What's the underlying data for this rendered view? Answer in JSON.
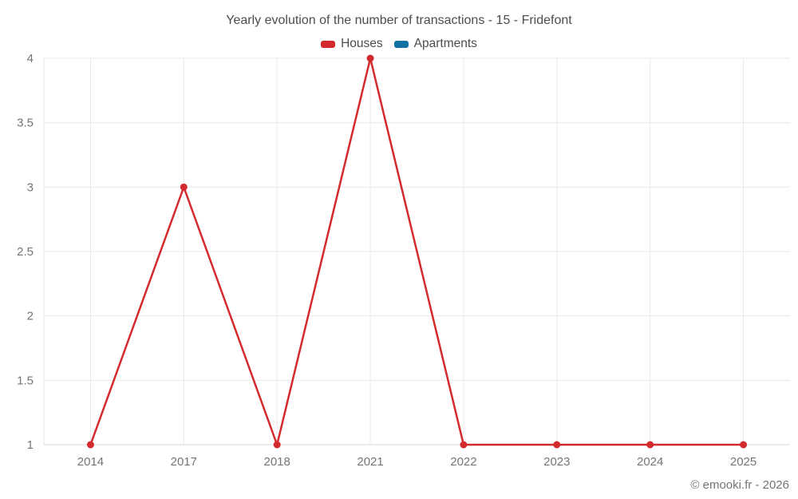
{
  "chart": {
    "title": "Yearly evolution of the number of transactions - 15 - Fridefont",
    "legend": [
      {
        "label": "Houses",
        "color": "#d42a2e"
      },
      {
        "label": "Apartments",
        "color": "#1270a2"
      }
    ],
    "copyright": "© emooki.fr - 2026"
  },
  "chart_data": {
    "type": "line",
    "title": "Yearly evolution of the number of transactions - 15 - Fridefont",
    "categories": [
      "2014",
      "2017",
      "2018",
      "2021",
      "2022",
      "2023",
      "2024",
      "2025"
    ],
    "series": [
      {
        "name": "Houses",
        "color": "#d42a2e",
        "values": [
          1,
          3,
          1,
          4,
          1,
          1,
          1,
          1
        ]
      },
      {
        "name": "Apartments",
        "color": "#1270a2",
        "values": []
      }
    ],
    "xlabel": "",
    "ylabel": "",
    "ylim": [
      1,
      4
    ],
    "yticks": [
      1,
      1.5,
      2,
      2.5,
      3,
      3.5,
      4
    ],
    "ytick_labels": [
      "1",
      "1.5",
      "2",
      "2.5",
      "3",
      "3.5",
      "4"
    ],
    "grid": true,
    "legend_position": "top"
  },
  "style": {
    "grid_color": "#e9e9e9",
    "axis_color": "#d9d9d9",
    "tick_label_color": "#757575",
    "marker_radius": 4.5,
    "line_width": 2.5
  }
}
